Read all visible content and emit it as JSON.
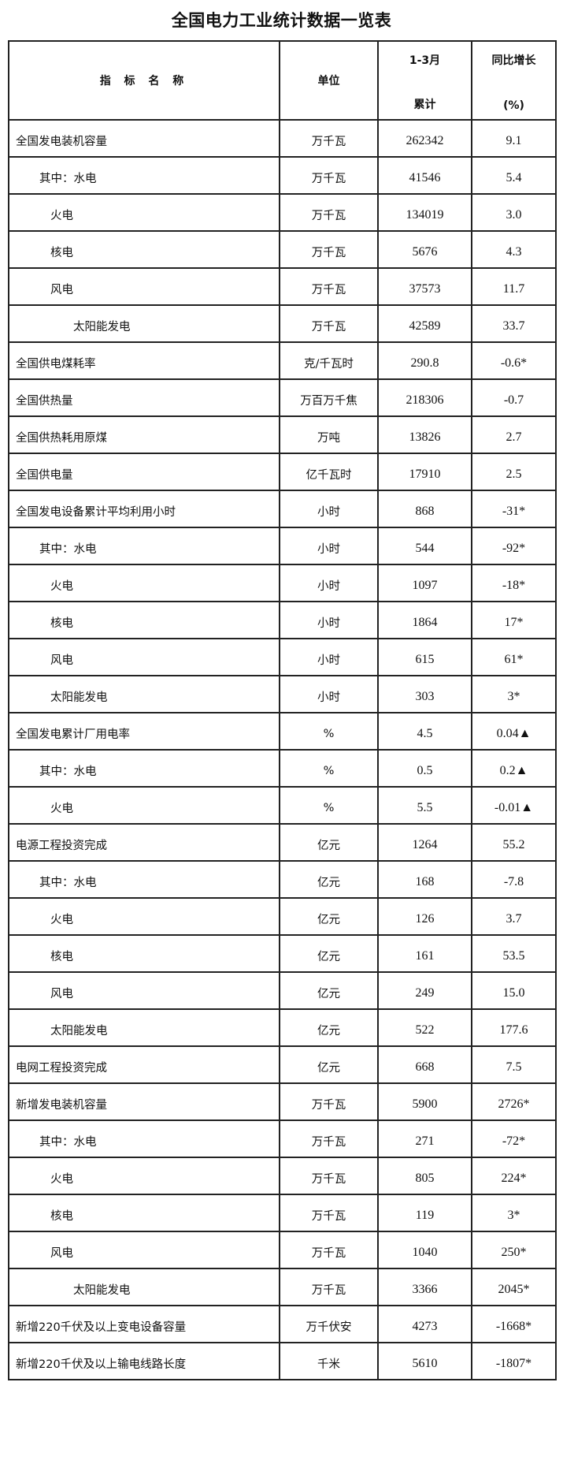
{
  "title": "全国电力工业统计数据一览表",
  "header": {
    "name": "指 标 名 称",
    "unit": "单位",
    "cumulative_line1": "1-3月",
    "cumulative_line2": "累计",
    "growth_line1": "同比增长",
    "growth_line2": "(%)"
  },
  "rows": [
    {
      "name": "全国发电装机容量",
      "level": 0,
      "unit": "万千瓦",
      "value": "262342",
      "growth": "9.1"
    },
    {
      "name": "其中：水电",
      "level": 1,
      "unit": "万千瓦",
      "value": "41546",
      "growth": "5.4"
    },
    {
      "name": "火电",
      "level": 2,
      "unit": "万千瓦",
      "value": "134019",
      "growth": "3.0"
    },
    {
      "name": "核电",
      "level": 2,
      "unit": "万千瓦",
      "value": "5676",
      "growth": "4.3"
    },
    {
      "name": "风电",
      "level": 2,
      "unit": "万千瓦",
      "value": "37573",
      "growth": "11.7"
    },
    {
      "name": "太阳能发电",
      "level": 3,
      "unit": "万千瓦",
      "value": "42589",
      "growth": "33.7"
    },
    {
      "name": "全国供电煤耗率",
      "level": 0,
      "unit": "克/千瓦时",
      "value": "290.8",
      "growth": "-0.6*"
    },
    {
      "name": "全国供热量",
      "level": 0,
      "unit": "万百万千焦",
      "value": "218306",
      "growth": "-0.7"
    },
    {
      "name": "全国供热耗用原煤",
      "level": 0,
      "unit": "万吨",
      "value": "13826",
      "growth": "2.7"
    },
    {
      "name": "全国供电量",
      "level": 0,
      "unit": "亿千瓦时",
      "value": "17910",
      "growth": "2.5"
    },
    {
      "name": "全国发电设备累计平均利用小时",
      "level": 0,
      "unit": "小时",
      "value": "868",
      "growth": "-31*"
    },
    {
      "name": "其中：水电",
      "level": 1,
      "unit": "小时",
      "value": "544",
      "growth": "-92*"
    },
    {
      "name": "火电",
      "level": 2,
      "unit": "小时",
      "value": "1097",
      "growth": "-18*"
    },
    {
      "name": "核电",
      "level": 2,
      "unit": "小时",
      "value": "1864",
      "growth": "17*"
    },
    {
      "name": "风电",
      "level": 2,
      "unit": "小时",
      "value": "615",
      "growth": "61*"
    },
    {
      "name": "太阳能发电",
      "level": 2,
      "unit": "小时",
      "value": "303",
      "growth": "3*"
    },
    {
      "name": "全国发电累计厂用电率",
      "level": 0,
      "unit": "%",
      "value": "4.5",
      "growth": "0.04▲"
    },
    {
      "name": "其中：水电",
      "level": 1,
      "unit": "%",
      "value": "0.5",
      "growth": "0.2▲"
    },
    {
      "name": "火电",
      "level": 2,
      "unit": "%",
      "value": "5.5",
      "growth": "-0.01▲"
    },
    {
      "name": "电源工程投资完成",
      "level": 0,
      "unit": "亿元",
      "value": "1264",
      "growth": "55.2"
    },
    {
      "name": "其中：水电",
      "level": 1,
      "unit": "亿元",
      "value": "168",
      "growth": "-7.8"
    },
    {
      "name": "火电",
      "level": 2,
      "unit": "亿元",
      "value": "126",
      "growth": "3.7"
    },
    {
      "name": "核电",
      "level": 2,
      "unit": "亿元",
      "value": "161",
      "growth": "53.5"
    },
    {
      "name": "风电",
      "level": 2,
      "unit": "亿元",
      "value": "249",
      "growth": "15.0"
    },
    {
      "name": "太阳能发电",
      "level": 2,
      "unit": "亿元",
      "value": "522",
      "growth": "177.6"
    },
    {
      "name": "电网工程投资完成",
      "level": 0,
      "unit": "亿元",
      "value": "668",
      "growth": "7.5"
    },
    {
      "name": "新增发电装机容量",
      "level": 0,
      "unit": "万千瓦",
      "value": "5900",
      "growth": "2726*"
    },
    {
      "name": "其中：水电",
      "level": 1,
      "unit": "万千瓦",
      "value": "271",
      "growth": "-72*"
    },
    {
      "name": "火电",
      "level": 2,
      "unit": "万千瓦",
      "value": "805",
      "growth": "224*"
    },
    {
      "name": "核电",
      "level": 2,
      "unit": "万千瓦",
      "value": "119",
      "growth": "3*"
    },
    {
      "name": "风电",
      "level": 2,
      "unit": "万千瓦",
      "value": "1040",
      "growth": "250*"
    },
    {
      "name": "太阳能发电",
      "level": 3,
      "unit": "万千瓦",
      "value": "3366",
      "growth": "2045*"
    },
    {
      "name": "新增220千伏及以上变电设备容量",
      "level": 0,
      "unit": "万千伏安",
      "value": "4273",
      "growth": "-1668*"
    },
    {
      "name": "新增220千伏及以上输电线路长度",
      "level": 0,
      "unit": "千米",
      "value": "5610",
      "growth": "-1807*"
    }
  ]
}
